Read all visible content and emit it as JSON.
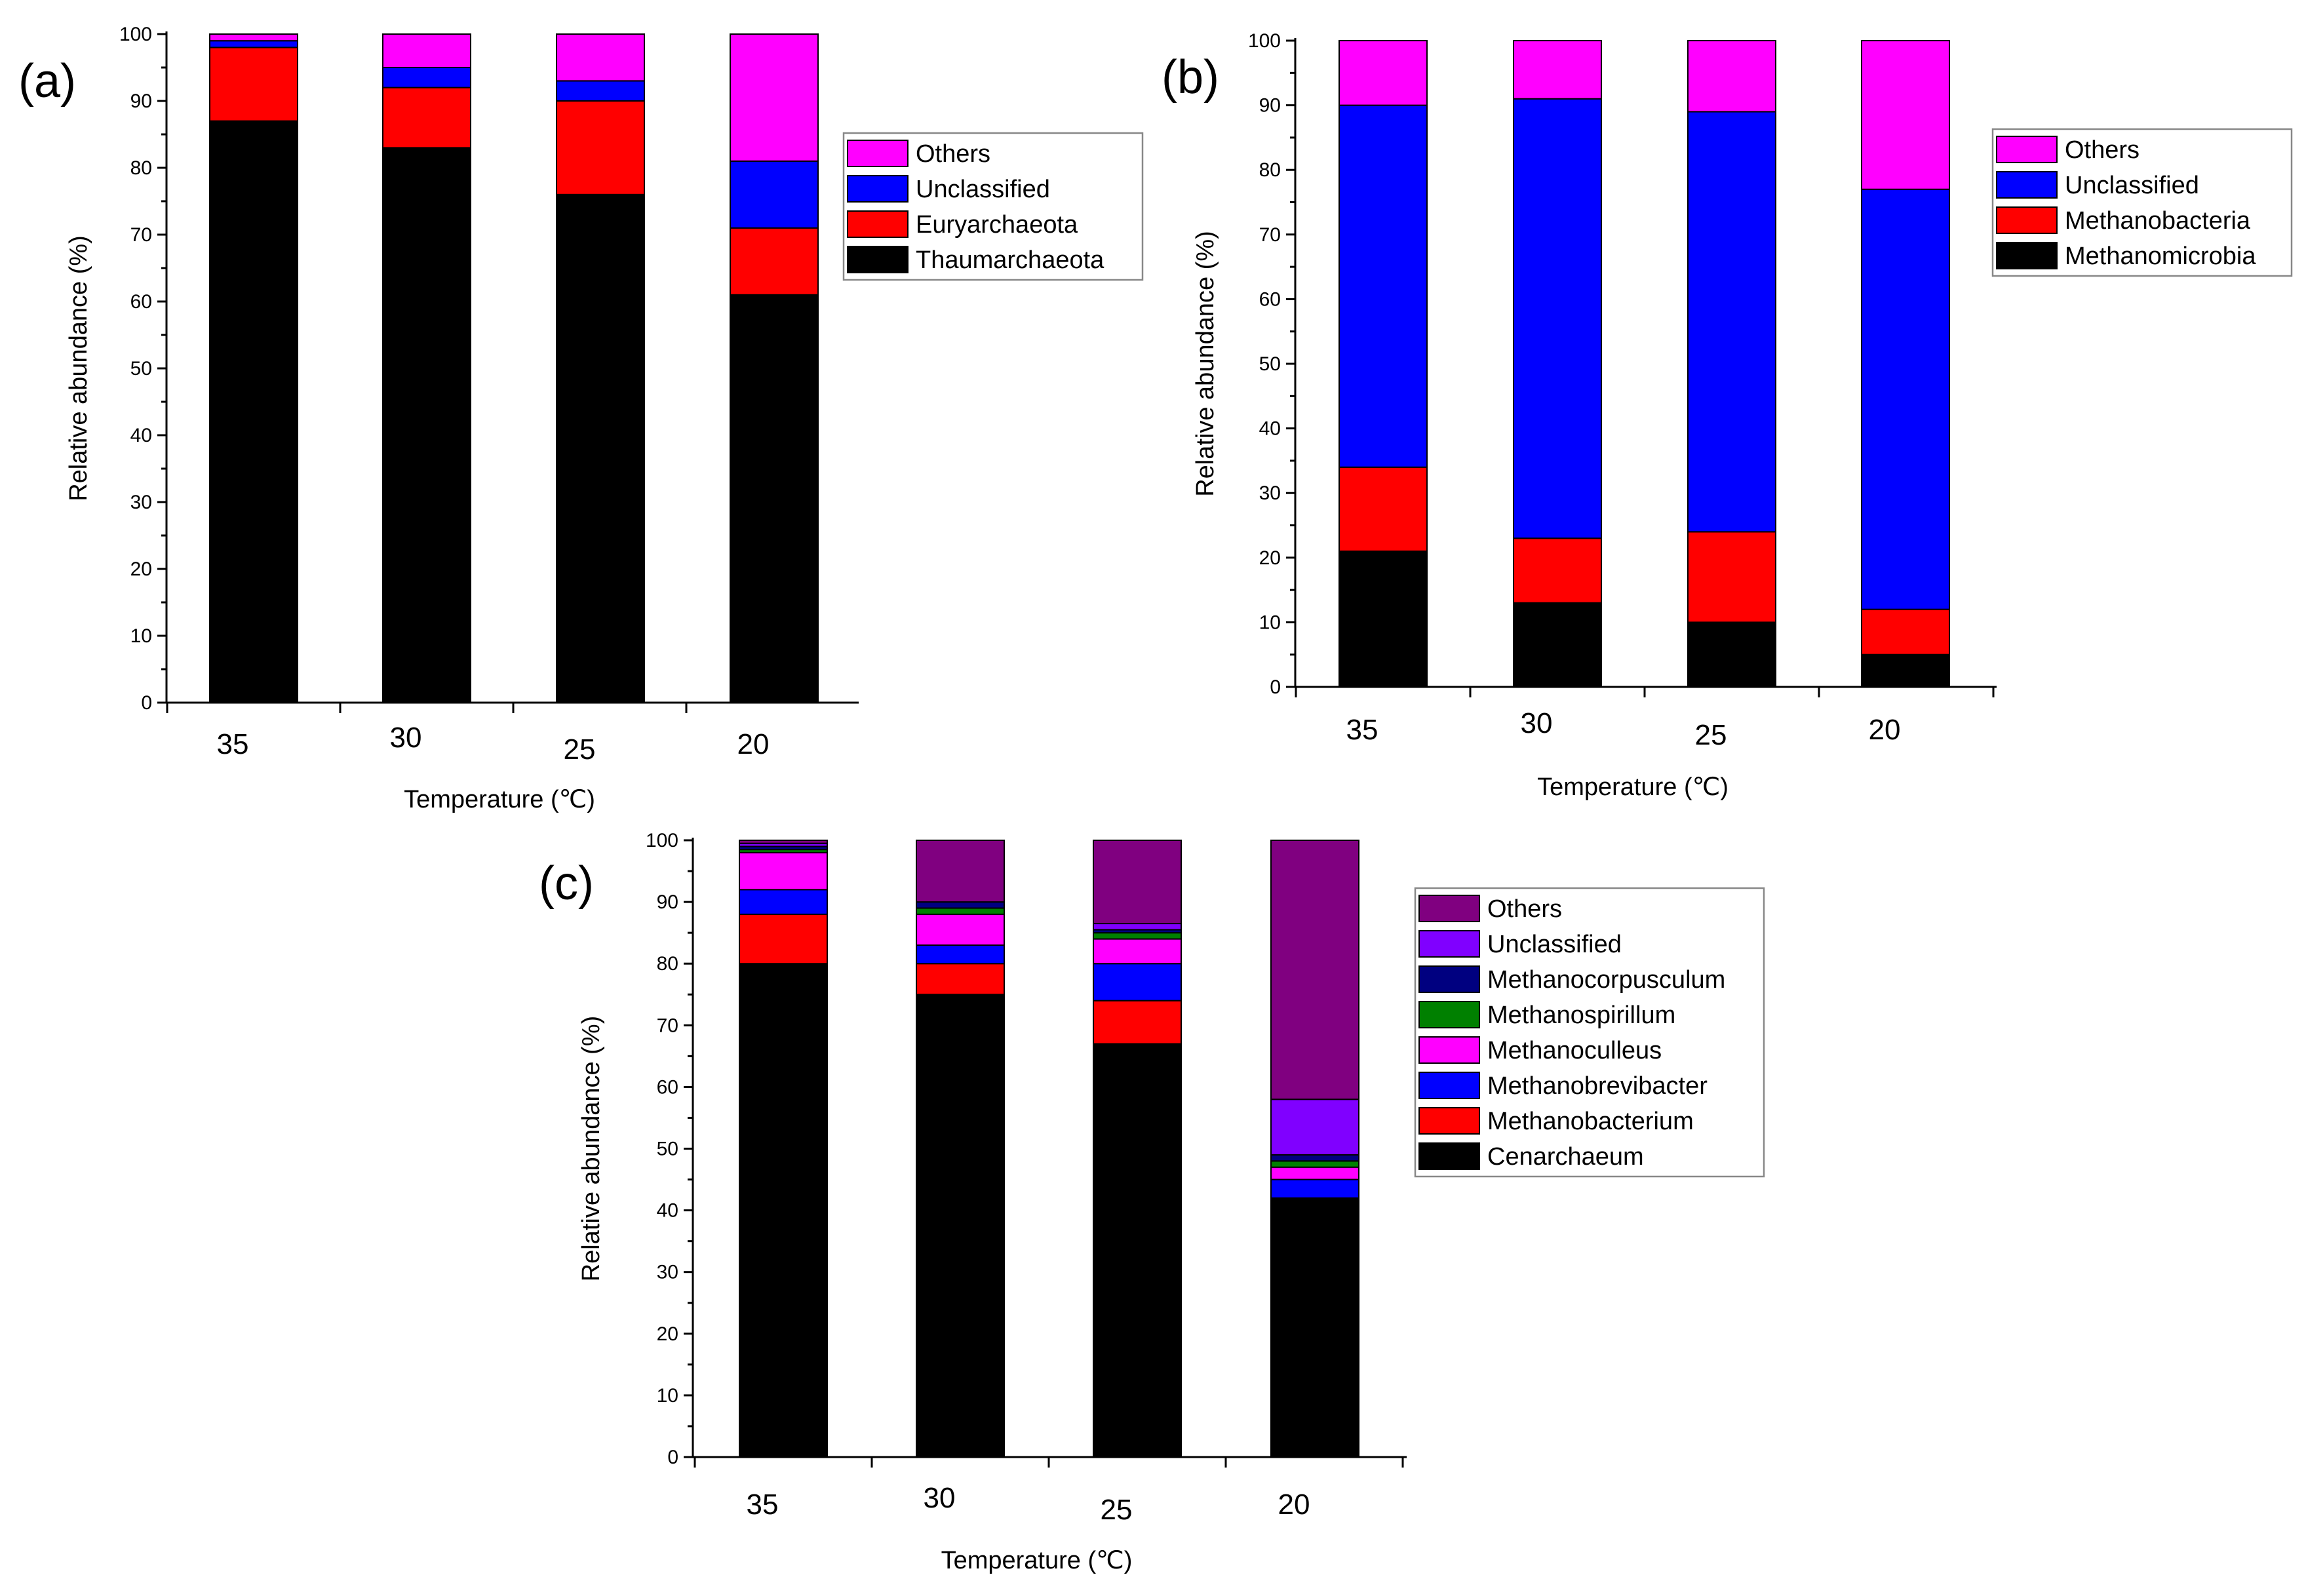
{
  "figure": {
    "panels": [
      "(a)",
      "(b)",
      "(c)"
    ]
  },
  "chart_data": [
    {
      "type": "bar",
      "stacked": true,
      "panel_label": "(a)",
      "title": "",
      "xlabel": "Temperature (℃)",
      "ylabel": "Relative abundance (%)",
      "ylim": [
        0,
        100
      ],
      "yticks": [
        0,
        10,
        20,
        30,
        40,
        50,
        60,
        70,
        80,
        90,
        100
      ],
      "categories": [
        "35",
        "30",
        "25",
        "20"
      ],
      "legend_position": "right",
      "series": [
        {
          "name": "Thaumarchaeota",
          "color": "#000000",
          "values": [
            87,
            83,
            76,
            61
          ]
        },
        {
          "name": "Euryarchaeota",
          "color": "#ff0000",
          "values": [
            11,
            9,
            14,
            10
          ]
        },
        {
          "name": "Unclassified",
          "color": "#0000ff",
          "values": [
            1,
            3,
            3,
            10
          ]
        },
        {
          "name": "Others",
          "color": "#ff00ff",
          "values": [
            1,
            5,
            7,
            19
          ]
        }
      ]
    },
    {
      "type": "bar",
      "stacked": true,
      "panel_label": "(b)",
      "title": "",
      "xlabel": "Temperature (℃)",
      "ylabel": "Relative abundance (%)",
      "ylim": [
        0,
        100
      ],
      "yticks": [
        0,
        10,
        20,
        30,
        40,
        50,
        60,
        70,
        80,
        90,
        100
      ],
      "categories": [
        "35",
        "30",
        "25",
        "20"
      ],
      "legend_position": "right",
      "series": [
        {
          "name": "Methanomicrobia",
          "color": "#000000",
          "values": [
            21,
            13,
            10,
            5
          ]
        },
        {
          "name": "Methanobacteria",
          "color": "#ff0000",
          "values": [
            13,
            10,
            14,
            7
          ]
        },
        {
          "name": "Unclassified",
          "color": "#0000ff",
          "values": [
            56,
            68,
            65,
            65
          ]
        },
        {
          "name": "Others",
          "color": "#ff00ff",
          "values": [
            10,
            9,
            11,
            23
          ]
        }
      ]
    },
    {
      "type": "bar",
      "stacked": true,
      "panel_label": "(c)",
      "title": "",
      "xlabel": "Temperature (℃)",
      "ylabel": "Relative abundance (%)",
      "ylim": [
        0,
        100
      ],
      "yticks": [
        0,
        10,
        20,
        30,
        40,
        50,
        60,
        70,
        80,
        90,
        100
      ],
      "categories": [
        "35",
        "30",
        "25",
        "20"
      ],
      "legend_position": "right",
      "series": [
        {
          "name": "Cenarchaeum",
          "color": "#000000",
          "values": [
            80,
            75,
            67,
            42
          ]
        },
        {
          "name": "Methanobacterium",
          "color": "#ff0000",
          "values": [
            8,
            5,
            7,
            0
          ]
        },
        {
          "name": "Methanobrevibacter",
          "color": "#0000ff",
          "values": [
            4,
            3,
            6,
            3
          ]
        },
        {
          "name": "Methanoculleus",
          "color": "#ff00ff",
          "values": [
            6,
            5,
            4,
            2
          ]
        },
        {
          "name": "Methanospirillum",
          "color": "#008000",
          "values": [
            0.5,
            1,
            1,
            1
          ]
        },
        {
          "name": "Methanocorpusculum",
          "color": "#000080",
          "values": [
            0.5,
            1,
            0.5,
            1
          ]
        },
        {
          "name": "Unclassified",
          "color": "#8000ff",
          "values": [
            0.5,
            0,
            1,
            9
          ]
        },
        {
          "name": "Others",
          "color": "#800080",
          "values": [
            0.5,
            10,
            13.5,
            42
          ]
        }
      ]
    }
  ]
}
